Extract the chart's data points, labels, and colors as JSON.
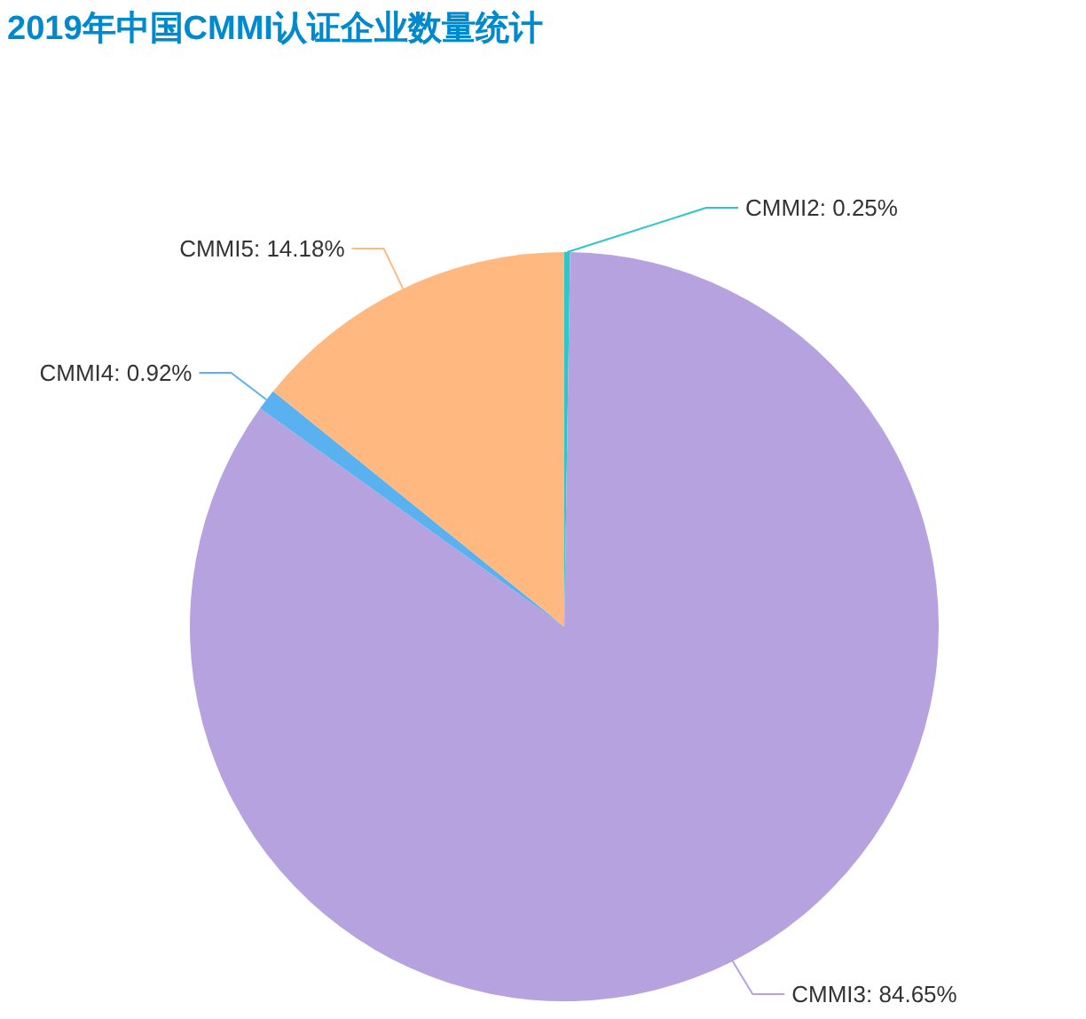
{
  "chart_data": {
    "type": "pie",
    "title": "2019年中国CMMI认证企业数量统计",
    "categories": [
      "CMMI2",
      "CMMI3",
      "CMMI4",
      "CMMI5"
    ],
    "values": [
      0.25,
      84.65,
      0.92,
      14.18
    ],
    "colors": [
      "#2ec7c9",
      "#b6a2de",
      "#5ab1ef",
      "#ffb980"
    ],
    "value_labels": [
      "0.25%",
      "84.65%",
      "0.92%",
      "14.18%"
    ]
  }
}
